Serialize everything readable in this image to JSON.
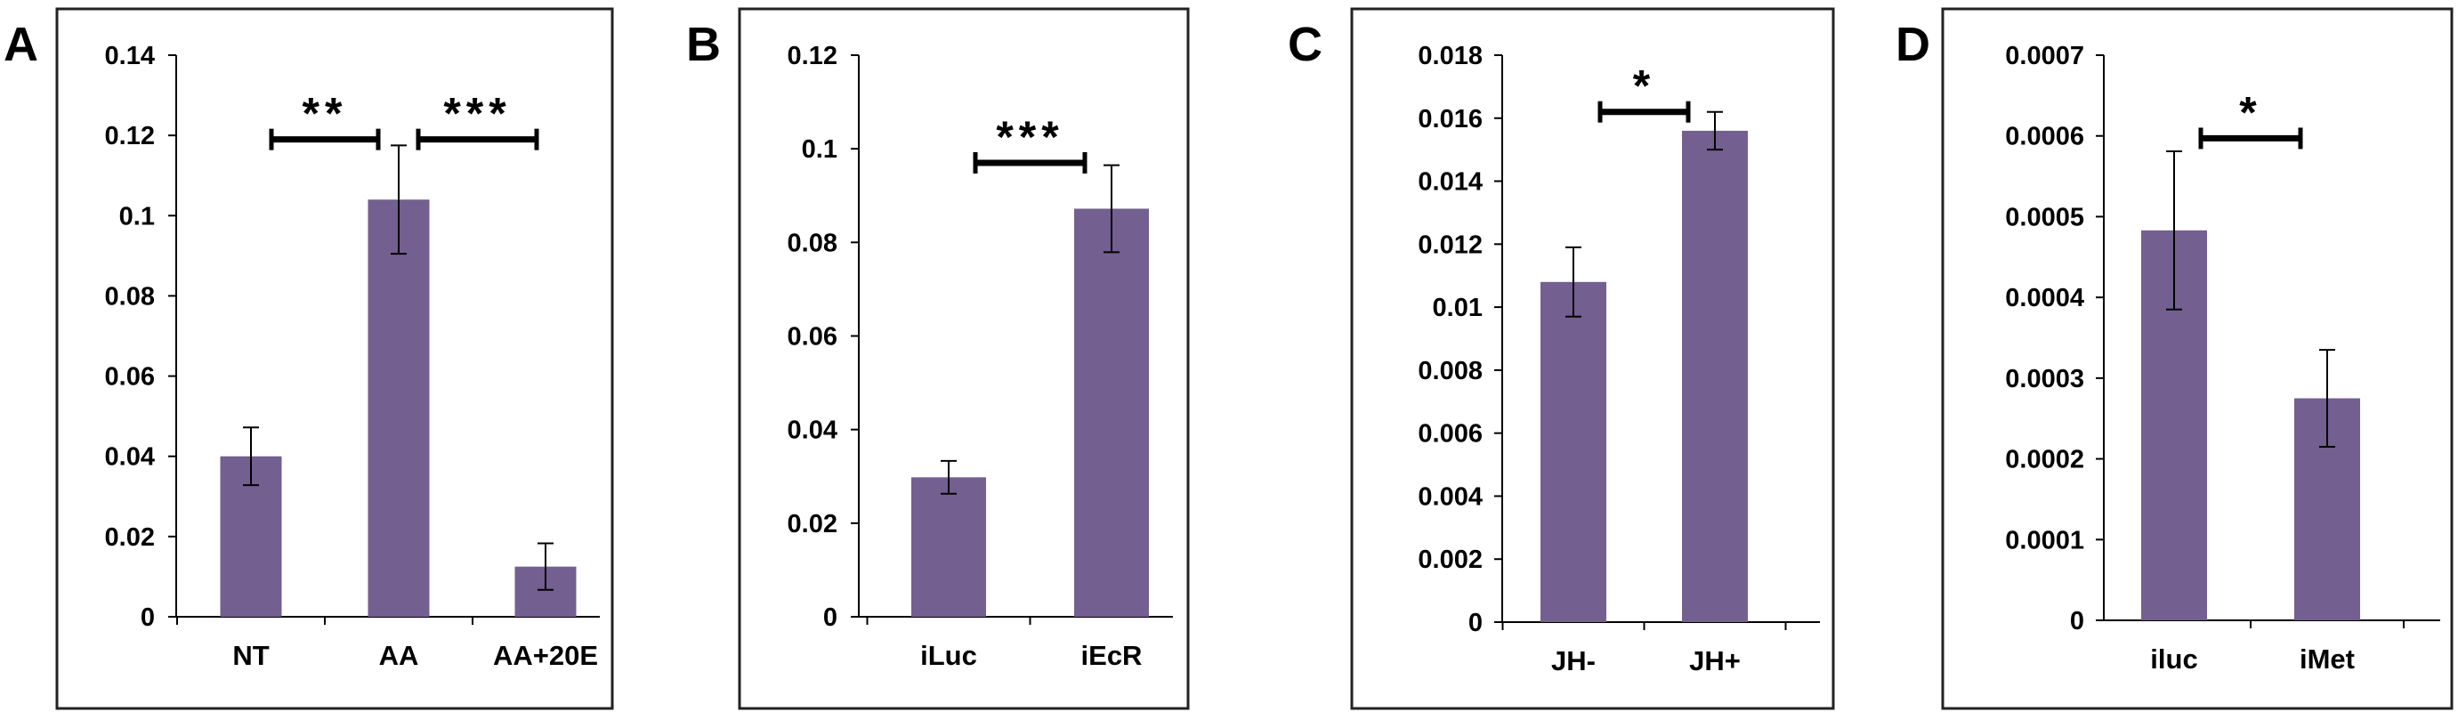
{
  "figure": {
    "bar_color": "#735f90",
    "frame_color": "#222222"
  },
  "chart_data": [
    {
      "panel": "A",
      "type": "bar",
      "categories": [
        "NT",
        "AA",
        "AA+20E"
      ],
      "values": [
        0.04,
        0.104,
        0.0125
      ],
      "errors": [
        0.0072,
        0.0135,
        0.0058
      ],
      "ylim": [
        0,
        0.14
      ],
      "yticks": [
        0,
        0.02,
        0.04,
        0.06,
        0.08,
        0.1,
        0.12,
        0.14
      ],
      "ytick_labels": [
        "0",
        "0.02",
        "0.04",
        "0.06",
        "0.08",
        "0.1",
        "0.12",
        "0.14"
      ],
      "xlabel": "",
      "ylabel": "",
      "title": "",
      "significance": [
        {
          "from": 0,
          "to": 1,
          "label": "**",
          "y": 0.119
        },
        {
          "from": 1,
          "to": 2,
          "label": "***",
          "y": 0.119
        }
      ]
    },
    {
      "panel": "B",
      "type": "bar",
      "categories": [
        "iLuc",
        "iEcR"
      ],
      "values": [
        0.0298,
        0.0872
      ],
      "errors": [
        0.0035,
        0.0093
      ],
      "ylim": [
        0,
        0.12
      ],
      "yticks": [
        0,
        0.02,
        0.04,
        0.06,
        0.08,
        0.1,
        0.12
      ],
      "ytick_labels": [
        "0",
        "0.02",
        "0.04",
        "0.06",
        "0.08",
        "0.1",
        "0.12"
      ],
      "xlabel": "",
      "ylabel": "",
      "title": "",
      "significance": [
        {
          "from": 0,
          "to": 1,
          "label": "***",
          "y": 0.097
        }
      ]
    },
    {
      "panel": "C",
      "type": "bar",
      "categories": [
        "JH-",
        "JH+"
      ],
      "values": [
        0.0108,
        0.0156
      ],
      "errors": [
        0.0011,
        0.0006
      ],
      "ylim": [
        0,
        0.018
      ],
      "yticks": [
        0,
        0.002,
        0.004,
        0.006,
        0.008,
        0.01,
        0.012,
        0.014,
        0.016,
        0.018
      ],
      "ytick_labels": [
        "0",
        "0.002",
        "0.004",
        "0.006",
        "0.008",
        "0.01",
        "0.012",
        "0.014",
        "0.016",
        "0.018"
      ],
      "xlabel": "",
      "ylabel": "",
      "title": "",
      "significance": [
        {
          "from": 0,
          "to": 1,
          "label": "*",
          "y": 0.0162
        }
      ]
    },
    {
      "panel": "D",
      "type": "bar",
      "categories": [
        "iluc",
        "iMet"
      ],
      "values": [
        0.000483,
        0.000275
      ],
      "errors": [
        9.8e-05,
        6e-05
      ],
      "ylim": [
        0,
        0.0007
      ],
      "yticks": [
        0,
        0.0001,
        0.0002,
        0.0003,
        0.0004,
        0.0005,
        0.0006,
        0.0007
      ],
      "ytick_labels": [
        "0",
        "0.0001",
        "0.0002",
        "0.0003",
        "0.0004",
        "0.0005",
        "0.0006",
        "0.0007"
      ],
      "xlabel": "",
      "ylabel": "",
      "title": "",
      "significance": [
        {
          "from": 0,
          "to": 1,
          "label": "*",
          "y": 0.000597
        }
      ]
    }
  ]
}
